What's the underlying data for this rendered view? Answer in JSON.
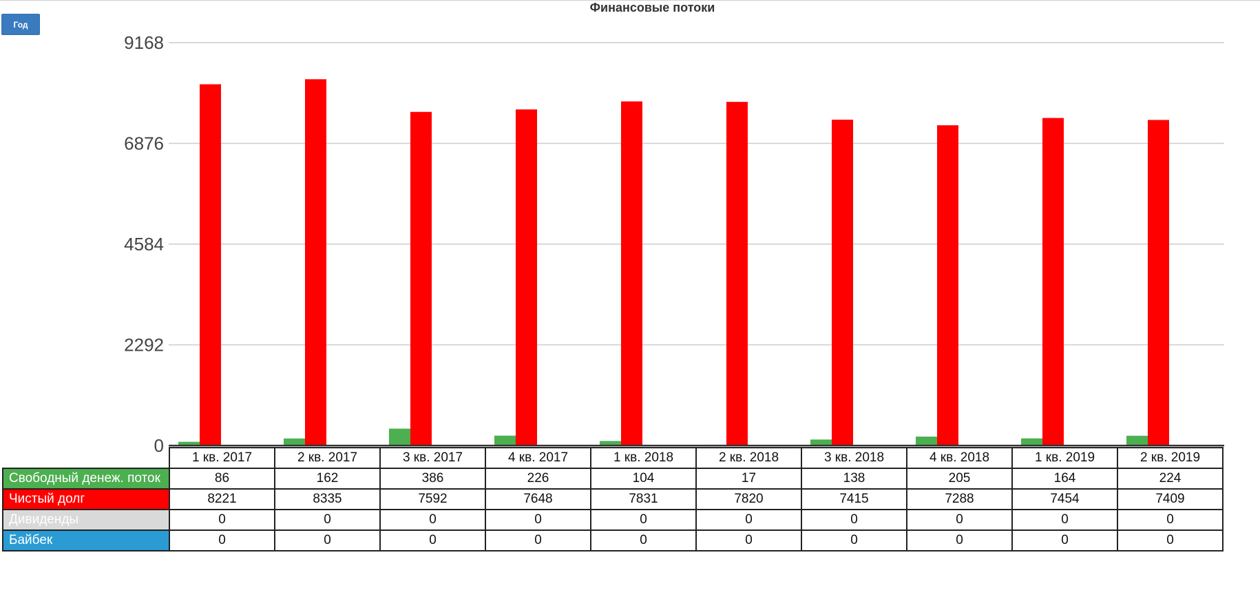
{
  "period_button": {
    "label": "Год"
  },
  "chart_data": {
    "type": "bar",
    "title": "Финансовые потоки",
    "categories": [
      "1 кв. 2017",
      "2 кв. 2017",
      "3 кв. 2017",
      "4 кв. 2017",
      "1 кв. 2018",
      "2 кв. 2018",
      "3 кв. 2018",
      "4 кв. 2018",
      "1 кв. 2019",
      "2 кв. 2019"
    ],
    "yticks": [
      "0",
      "2292",
      "4584",
      "6876",
      "9168"
    ],
    "ylim": [
      0,
      9168
    ],
    "grid": true,
    "series": [
      {
        "name": "Свободный денеж. поток",
        "color": "#4caf50",
        "values": [
          86,
          162,
          386,
          226,
          104,
          17,
          138,
          205,
          164,
          224
        ]
      },
      {
        "name": "Чистый долг",
        "color": "#ff0000",
        "values": [
          8221,
          8335,
          7592,
          7648,
          7831,
          7820,
          7415,
          7288,
          7454,
          7409
        ]
      },
      {
        "name": "Дивиденды",
        "color": "#d9d9d9",
        "values": [
          0,
          0,
          0,
          0,
          0,
          0,
          0,
          0,
          0,
          0
        ]
      },
      {
        "name": "Байбек",
        "color": "#2a9bd3",
        "values": [
          0,
          0,
          0,
          0,
          0,
          0,
          0,
          0,
          0,
          0
        ]
      }
    ]
  }
}
